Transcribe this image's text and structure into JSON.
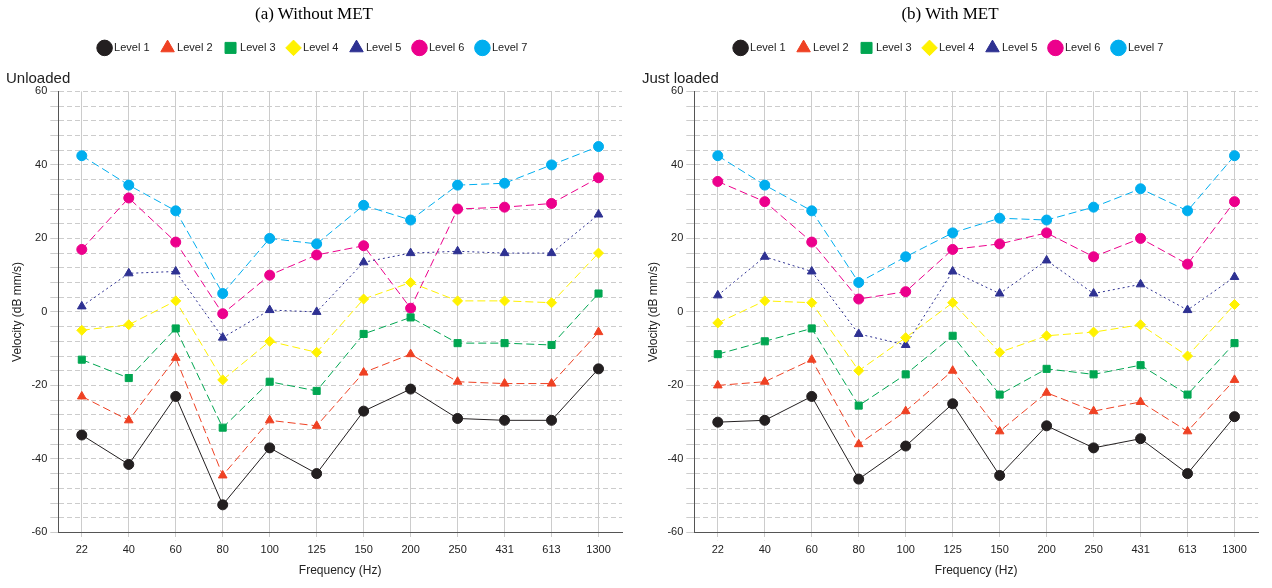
{
  "chart_data": [
    {
      "type": "line",
      "title": "(a) Without MET",
      "subtitle": "Unloaded",
      "xlabel": "Frequency (Hz)",
      "ylabel": "Velocity (dB mm/s)",
      "legend": "top",
      "grid": true,
      "categories": [
        "22",
        "40",
        "60",
        "80",
        "100",
        "125",
        "150",
        "200",
        "250",
        "431",
        "613",
        "1300"
      ],
      "ylim": [
        -60,
        60
      ],
      "yticks": [
        -60,
        {
          "value": -56,
          "label": null
        },
        {
          "value": -52,
          "label": null
        },
        {
          "value": -48,
          "label": null
        },
        {
          "value": -44,
          "label": null
        },
        -40,
        {
          "value": -36,
          "label": null
        },
        {
          "value": -32,
          "label": null
        },
        {
          "value": -28,
          "label": null
        },
        {
          "value": -24,
          "label": null
        },
        -20,
        {
          "value": -16,
          "label": null
        },
        {
          "value": -12,
          "label": null
        },
        {
          "value": -8,
          "label": null
        },
        {
          "value": -4,
          "label": null
        },
        0,
        {
          "value": 4,
          "label": null
        },
        {
          "value": 8,
          "label": null
        },
        {
          "value": 12,
          "label": null
        },
        {
          "value": 16,
          "label": null
        },
        20,
        {
          "value": 24,
          "label": null
        },
        {
          "value": 28,
          "label": null
        },
        {
          "value": 32,
          "label": null
        },
        {
          "value": 36,
          "label": null
        },
        40,
        {
          "value": 44,
          "label": null
        },
        {
          "value": 48,
          "label": null
        },
        {
          "value": 52,
          "label": null
        },
        {
          "value": 56,
          "label": null
        },
        60
      ],
      "series": [
        {
          "name": "Level 1",
          "color": "#231f20",
          "marker": "circle",
          "line_style": "solid",
          "values": [
            -33.5,
            -41.5,
            -23,
            -52.5,
            -37,
            -44,
            -27,
            -21,
            -29,
            -29.5,
            -29.5,
            -15.5
          ]
        },
        {
          "name": "Level 2",
          "color": "#ef4123",
          "marker": "triangle",
          "line_style": "dashed",
          "values": [
            -23,
            -29.5,
            -12.5,
            -44.5,
            -29.5,
            -31,
            -16.5,
            -11.5,
            -19,
            -19.5,
            -19.5,
            -5.5
          ]
        },
        {
          "name": "Level 3",
          "color": "#00a651",
          "marker": "square",
          "line_style": "dashed",
          "values": [
            -13,
            -18,
            -4.5,
            -31.5,
            -19,
            -21.5,
            -6,
            -1.5,
            -8.5,
            -8.5,
            -9,
            5
          ]
        },
        {
          "name": "Level 4",
          "color": "#fff200",
          "marker": "diamond",
          "line_style": "dashed",
          "values": [
            -5,
            -3.5,
            3,
            -18.5,
            -8,
            -11,
            3.5,
            8,
            3,
            3,
            2.5,
            16
          ]
        },
        {
          "name": "Level 5",
          "color": "#2e3192",
          "marker": "triangle",
          "line_style": "dotted",
          "values": [
            1.5,
            10.5,
            11,
            -7,
            0.5,
            0,
            13.5,
            16,
            16.5,
            16,
            16,
            26.5
          ]
        },
        {
          "name": "Level 6",
          "color": "#ec008c",
          "marker": "circle",
          "line_style": "dashed",
          "values": [
            17,
            31,
            19,
            -0.5,
            10,
            15.5,
            18,
            1,
            28,
            28.5,
            29.5,
            36.5
          ]
        },
        {
          "name": "Level 7",
          "color": "#00aeef",
          "marker": "circle",
          "line_style": "dashed",
          "values": [
            42.5,
            34.5,
            27.5,
            5,
            20,
            18.5,
            29,
            25,
            34.5,
            35,
            40,
            45
          ]
        }
      ]
    },
    {
      "type": "line",
      "title": "(b) With MET",
      "subtitle": "Just loaded",
      "xlabel": "Frequency (Hz)",
      "ylabel": "Velocity (dB mm/s)",
      "legend": "top",
      "grid": true,
      "categories": [
        "22",
        "40",
        "60",
        "80",
        "100",
        "125",
        "150",
        "200",
        "250",
        "431",
        "613",
        "1300"
      ],
      "ylim": [
        -60,
        60
      ],
      "yticks": [
        -60,
        {
          "value": -56,
          "label": null
        },
        {
          "value": -52,
          "label": null
        },
        {
          "value": -48,
          "label": null
        },
        {
          "value": -44,
          "label": null
        },
        -40,
        {
          "value": -36,
          "label": null
        },
        {
          "value": -32,
          "label": null
        },
        {
          "value": -28,
          "label": null
        },
        {
          "value": -24,
          "label": null
        },
        -20,
        {
          "value": -16,
          "label": null
        },
        {
          "value": -12,
          "label": null
        },
        {
          "value": -8,
          "label": null
        },
        {
          "value": -4,
          "label": null
        },
        0,
        {
          "value": 4,
          "label": null
        },
        {
          "value": 8,
          "label": null
        },
        {
          "value": 12,
          "label": null
        },
        {
          "value": 16,
          "label": null
        },
        20,
        {
          "value": 24,
          "label": null
        },
        {
          "value": 28,
          "label": null
        },
        {
          "value": 32,
          "label": null
        },
        {
          "value": 36,
          "label": null
        },
        40,
        {
          "value": 44,
          "label": null
        },
        {
          "value": 48,
          "label": null
        },
        {
          "value": 52,
          "label": null
        },
        {
          "value": 56,
          "label": null
        },
        60
      ],
      "series": [
        {
          "name": "Level 1",
          "color": "#231f20",
          "marker": "circle",
          "line_style": "solid",
          "values": [
            -30,
            -29.5,
            -23,
            -45.5,
            -36.5,
            -25,
            -44.5,
            -31,
            -37,
            -34.5,
            -44,
            -28.5
          ]
        },
        {
          "name": "Level 2",
          "color": "#ef4123",
          "marker": "triangle",
          "line_style": "dashed",
          "values": [
            -20,
            -19,
            -13,
            -36,
            -27,
            -16,
            -32.5,
            -22,
            -27,
            -24.5,
            -32.5,
            -18.5
          ]
        },
        {
          "name": "Level 3",
          "color": "#00a651",
          "marker": "square",
          "line_style": "dashed",
          "values": [
            -11.5,
            -8,
            -4.5,
            -25.5,
            -17,
            -6.5,
            -22.5,
            -15.5,
            -17,
            -14.5,
            -22.5,
            -8.5
          ]
        },
        {
          "name": "Level 4",
          "color": "#fff200",
          "marker": "diamond",
          "line_style": "dashed",
          "values": [
            -3,
            3,
            2.5,
            -16,
            -7,
            2.5,
            -11,
            -6.5,
            -5.5,
            -3.5,
            -12,
            2
          ]
        },
        {
          "name": "Level 5",
          "color": "#2e3192",
          "marker": "triangle",
          "line_style": "dotted",
          "values": [
            4.5,
            15,
            11,
            -6,
            -9,
            11,
            5,
            14,
            5,
            7.5,
            0.5,
            9.5
          ]
        },
        {
          "name": "Level 6",
          "color": "#ec008c",
          "marker": "circle",
          "line_style": "dashed",
          "values": [
            35.5,
            30,
            19,
            3.5,
            5.5,
            17,
            18.5,
            21.5,
            15,
            20,
            13,
            30
          ]
        },
        {
          "name": "Level 7",
          "color": "#00aeef",
          "marker": "circle",
          "line_style": "dashed",
          "values": [
            42.5,
            34.5,
            27.5,
            8,
            15,
            21.5,
            25.5,
            25,
            28.5,
            33.5,
            27.5,
            42.5
          ]
        }
      ]
    }
  ]
}
